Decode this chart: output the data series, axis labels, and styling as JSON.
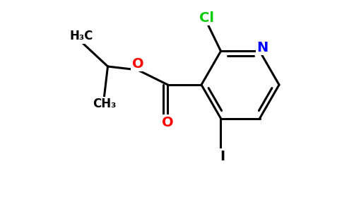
{
  "bg_color": "#ffffff",
  "atom_colors": {
    "N": "#0000ff",
    "O": "#ff0000",
    "Cl": "#00cc00",
    "I": "#000000",
    "C": "#000000"
  },
  "bond_color": "#000000",
  "bond_width": 2.2,
  "figsize": [
    4.84,
    3.0
  ],
  "dpi": 100,
  "xlim": [
    0,
    9.68
  ],
  "ylim": [
    0,
    6.0
  ]
}
